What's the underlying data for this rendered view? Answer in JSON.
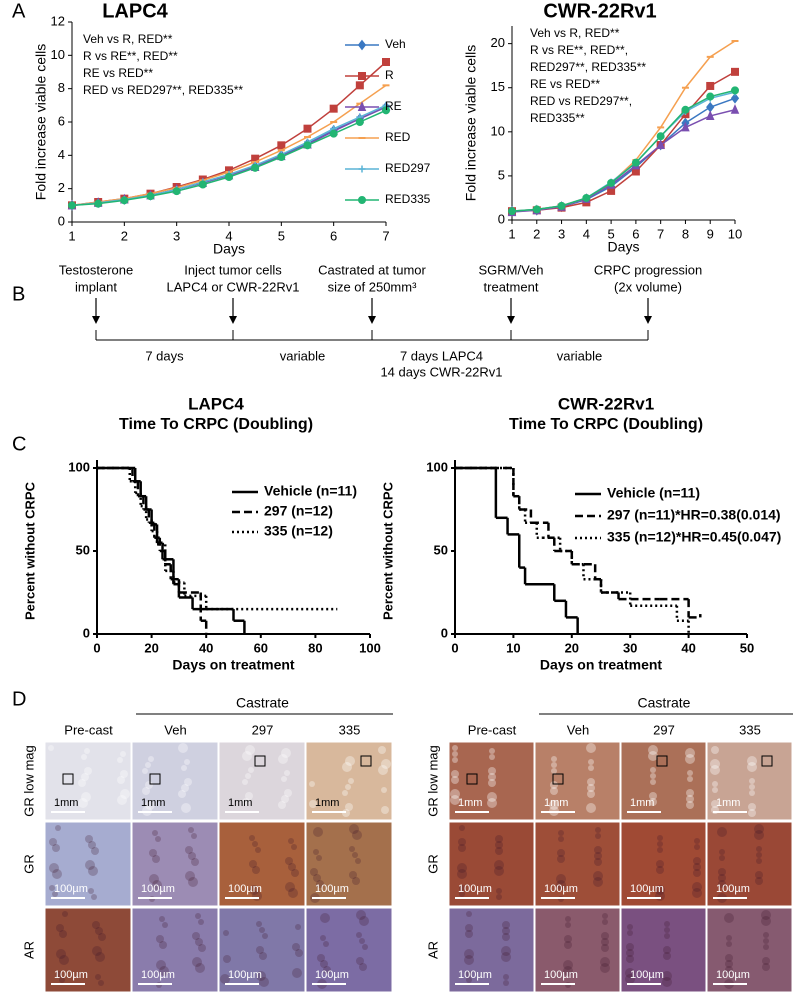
{
  "panel_labels": [
    "A",
    "B",
    "C",
    "D"
  ],
  "chart_data": [
    {
      "type": "line",
      "title": "LAPC4",
      "xlabel": "Days",
      "ylabel": "Fold increase viable cells",
      "x": [
        1,
        1.5,
        2,
        2.5,
        3,
        3.5,
        4,
        4.5,
        5,
        5.5,
        6,
        6.5,
        7
      ],
      "xlim": [
        1,
        7
      ],
      "xticks": [
        1,
        2,
        3,
        4,
        5,
        6,
        7
      ],
      "ylim": [
        0,
        12
      ],
      "yticks": [
        0,
        2,
        4,
        6,
        8,
        10,
        12
      ],
      "legend": "right",
      "annotations": [
        "Veh vs R, RED**",
        "R vs RE**, RED**",
        "RE vs RED**",
        "RED vs RED297**, RED335**"
      ],
      "series": [
        {
          "name": "Veh",
          "color": "#3a78c2",
          "marker": "diamond",
          "values": [
            1,
            1.15,
            1.35,
            1.6,
            1.95,
            2.35,
            2.8,
            3.35,
            4.0,
            4.7,
            5.5,
            6.2,
            6.9
          ]
        },
        {
          "name": "R",
          "color": "#c0403c",
          "marker": "square",
          "values": [
            1,
            1.2,
            1.4,
            1.7,
            2.1,
            2.55,
            3.1,
            3.8,
            4.6,
            5.6,
            6.8,
            8.2,
            9.6
          ]
        },
        {
          "name": "RE",
          "color": "#7a4fb0",
          "marker": "triangle",
          "values": [
            1,
            1.15,
            1.35,
            1.6,
            1.95,
            2.35,
            2.8,
            3.3,
            3.95,
            4.65,
            5.45,
            6.2,
            6.9
          ]
        },
        {
          "name": "RED",
          "color": "#f5a050",
          "marker": "dash",
          "values": [
            1,
            1.2,
            1.4,
            1.7,
            2.05,
            2.5,
            3.0,
            3.6,
            4.3,
            5.1,
            6.0,
            7.1,
            8.2
          ]
        },
        {
          "name": "RED297",
          "color": "#5ab4d6",
          "marker": "plus",
          "values": [
            1,
            1.15,
            1.35,
            1.6,
            1.95,
            2.4,
            2.85,
            3.4,
            4.05,
            4.8,
            5.6,
            6.3,
            7.0
          ]
        },
        {
          "name": "RED335",
          "color": "#22b573",
          "marker": "circle",
          "values": [
            1,
            1.1,
            1.3,
            1.55,
            1.85,
            2.25,
            2.7,
            3.25,
            3.9,
            4.6,
            5.3,
            6.0,
            6.7
          ]
        }
      ]
    },
    {
      "type": "line",
      "title": "CWR-22Rv1",
      "xlabel": "Days",
      "ylabel": "Fold increase viable cells",
      "x": [
        1,
        2,
        3,
        4,
        5,
        6,
        7,
        8,
        9,
        10
      ],
      "xlim": [
        1,
        10
      ],
      "xticks": [
        1,
        2,
        3,
        4,
        5,
        6,
        7,
        8,
        9,
        10
      ],
      "ylim": [
        0,
        22
      ],
      "yticks": [
        0,
        5,
        10,
        15,
        20
      ],
      "annotations": [
        "Veh vs R, RED**",
        "R vs RE**, RED**,",
        "RED297**, RED335**",
        "RE vs RED**",
        "RED vs RED297**,",
        "RED335**"
      ],
      "series": [
        {
          "name": "Veh",
          "color": "#3a78c2",
          "marker": "diamond",
          "values": [
            1,
            1.1,
            1.5,
            2.3,
            3.8,
            6,
            8.5,
            11,
            12.8,
            13.8
          ]
        },
        {
          "name": "R",
          "color": "#c0403c",
          "marker": "square",
          "values": [
            1,
            1.1,
            1.4,
            2.0,
            3.3,
            5.5,
            8.5,
            12,
            15.2,
            16.8
          ]
        },
        {
          "name": "RE",
          "color": "#7a4fb0",
          "marker": "triangle",
          "values": [
            0.9,
            1.1,
            1.5,
            2.4,
            4.0,
            6.2,
            8.5,
            10.5,
            11.8,
            12.5
          ]
        },
        {
          "name": "RED",
          "color": "#f5a050",
          "marker": "dash",
          "values": [
            1,
            1.2,
            1.6,
            2.5,
            4.2,
            6.8,
            10.5,
            15,
            18.5,
            20.3
          ]
        },
        {
          "name": "RED297",
          "color": "#5ab4d6",
          "marker": "plus",
          "values": [
            1,
            1.2,
            1.6,
            2.5,
            4.3,
            6.5,
            9.5,
            12.3,
            13.8,
            14.5
          ]
        },
        {
          "name": "RED335",
          "color": "#22b573",
          "marker": "circle",
          "values": [
            1,
            1.2,
            1.6,
            2.5,
            4.2,
            6.5,
            9.5,
            12.5,
            14,
            14.7
          ]
        }
      ]
    },
    {
      "type": "step",
      "title": "LAPC4",
      "subtitle": "Time To CRPC (Doubling)",
      "xlabel": "Days on treatment",
      "ylabel": "Percent without CRPC",
      "xlim": [
        0,
        100
      ],
      "xticks": [
        0,
        20,
        40,
        60,
        80,
        100
      ],
      "ylim": [
        0,
        100
      ],
      "yticks": [
        0,
        50,
        100
      ],
      "legend": "right",
      "series": [
        {
          "name": "Vehicle (n=11)",
          "color": "#000000",
          "dash": "solid",
          "x": [
            0,
            14,
            16,
            18,
            20,
            22,
            24,
            28,
            30,
            35,
            45,
            50,
            54
          ],
          "values": [
            100,
            92,
            83,
            75,
            66,
            55,
            45,
            30,
            22,
            15,
            15,
            8,
            0
          ]
        },
        {
          "name": "297 (n=12)",
          "color": "#000000",
          "dash": "dashed",
          "x": [
            0,
            13,
            15,
            17,
            19,
            21,
            23,
            25,
            27,
            30,
            38,
            40
          ],
          "values": [
            100,
            92,
            83,
            75,
            67,
            58,
            50,
            42,
            33,
            25,
            8,
            0
          ]
        },
        {
          "name": "335 (n=12)",
          "color": "#000000",
          "dash": "dotted",
          "x": [
            0,
            12,
            14,
            16,
            18,
            20,
            22,
            25,
            28,
            32,
            40,
            88
          ],
          "values": [
            100,
            92,
            85,
            77,
            69,
            62,
            54,
            38,
            31,
            23,
            15,
            15
          ]
        }
      ]
    },
    {
      "type": "step",
      "title": "CWR-22Rv1",
      "subtitle": "Time To CRPC (Doubling)",
      "xlabel": "Days on treatment",
      "ylabel": "Percent without CRPC",
      "xlim": [
        0,
        50
      ],
      "xticks": [
        0,
        10,
        20,
        30,
        40,
        50
      ],
      "ylim": [
        0,
        100
      ],
      "yticks": [
        0,
        50,
        100
      ],
      "legend": "right",
      "series": [
        {
          "name": "Vehicle (n=11)",
          "color": "#000000",
          "dash": "solid",
          "x": [
            0,
            7,
            9,
            11,
            12,
            17,
            19,
            21
          ],
          "values": [
            100,
            70,
            60,
            40,
            30,
            20,
            10,
            0
          ]
        },
        {
          "name": "297 (n=11)*HR=0.38(0.014)",
          "color": "#000000",
          "dash": "dashed",
          "x": [
            0,
            10,
            11,
            13,
            16,
            17,
            20,
            24,
            25,
            28,
            35,
            40,
            42
          ],
          "values": [
            100,
            83,
            75,
            67,
            58,
            50,
            42,
            33,
            25,
            21,
            21,
            10,
            12
          ]
        },
        {
          "name": "335 (n=12)*HR=0.45(0.047)",
          "color": "#000000",
          "dash": "dotted",
          "x": [
            0,
            10,
            11,
            12,
            14,
            15,
            18,
            20,
            22,
            25,
            30,
            36,
            38,
            40
          ],
          "values": [
            100,
            83,
            75,
            67,
            58,
            58,
            50,
            42,
            33,
            25,
            17,
            17,
            8,
            0
          ]
        }
      ]
    }
  ],
  "timeline": {
    "events": [
      [
        "Testosterone",
        "implant"
      ],
      [
        "Inject tumor cells",
        "LAPC4 or CWR-22Rv1"
      ],
      [
        "Castrated at tumor",
        "size of 250mm³"
      ],
      [
        "SGRM/Veh",
        "treatment"
      ],
      [
        "CRPC progression",
        "(2x volume)"
      ]
    ],
    "intervals": [
      [
        "7 days"
      ],
      [
        "variable"
      ],
      [
        "7 days LAPC4",
        "14 days CWR-22Rv1"
      ],
      [
        "variable"
      ]
    ]
  },
  "histology": [
    {
      "header": "Castrate",
      "columns": [
        "Pre-cast",
        "Veh",
        "297",
        "335"
      ],
      "rows": [
        "GR low mag",
        "GR",
        "AR"
      ],
      "scale_bars": [
        "1mm",
        "100µm",
        "100µm"
      ]
    },
    {
      "header": "Castrate",
      "columns": [
        "Pre-cast",
        "Veh",
        "297",
        "335"
      ],
      "rows": [
        "GR low mag",
        "GR",
        "AR"
      ],
      "scale_bars": [
        "1mm",
        "100µm",
        "100µm"
      ]
    }
  ]
}
